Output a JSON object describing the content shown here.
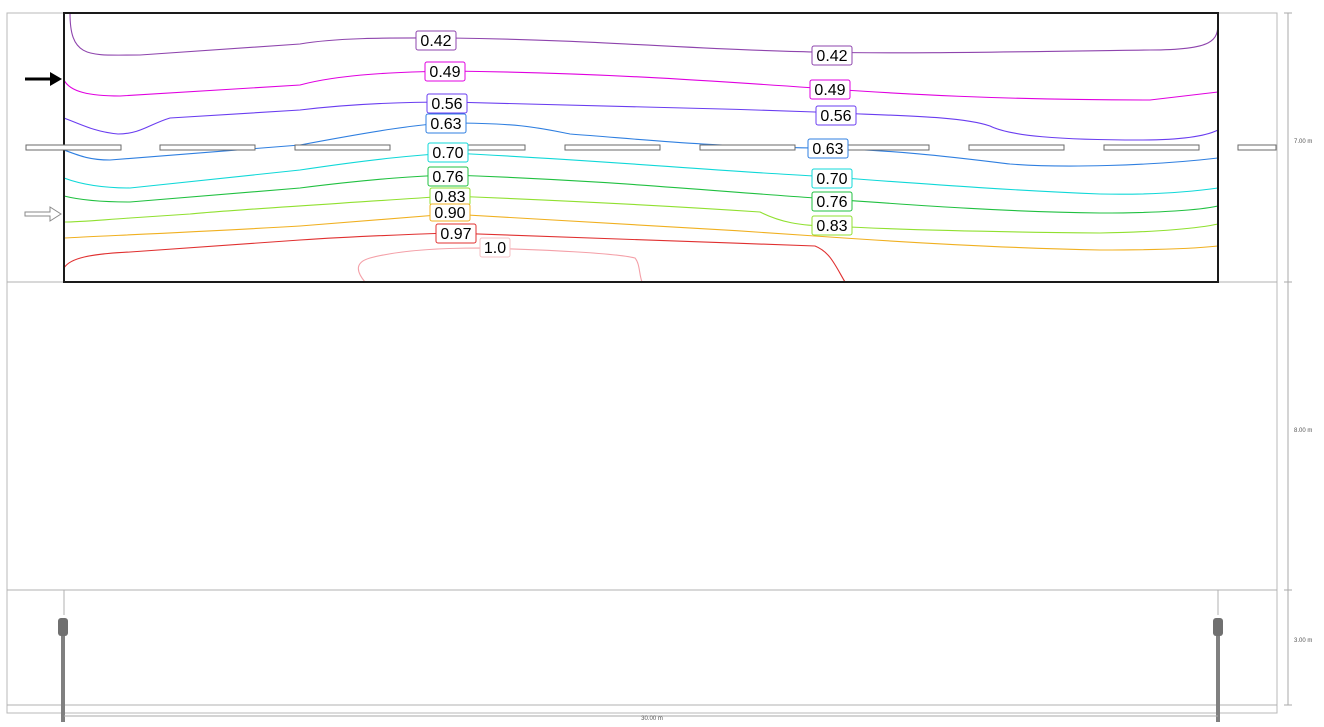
{
  "dimensions": {
    "road_height": "7.00 m",
    "middle_height": "8.00 m",
    "bottom_height": "3.00 m",
    "total_width": "30.00 m"
  },
  "contours": [
    {
      "value": "0.42",
      "color": "#8e44ad"
    },
    {
      "value": "0.49",
      "color": "#e000e0"
    },
    {
      "value": "0.56",
      "color": "#6a3df0"
    },
    {
      "value": "0.63",
      "color": "#2f7fe0"
    },
    {
      "value": "0.70",
      "color": "#10d8d8"
    },
    {
      "value": "0.76",
      "color": "#20c040"
    },
    {
      "value": "0.83",
      "color": "#90e030"
    },
    {
      "value": "0.90",
      "color": "#f0b020"
    },
    {
      "value": "0.97",
      "color": "#e03030"
    },
    {
      "value": "1.0",
      "color": "#f4a0a8"
    }
  ],
  "arrows": [
    {
      "name": "traffic-direction-solid-arrow-icon",
      "style": "solid"
    },
    {
      "name": "traffic-direction-outline-arrow-icon",
      "style": "outline"
    }
  ]
}
